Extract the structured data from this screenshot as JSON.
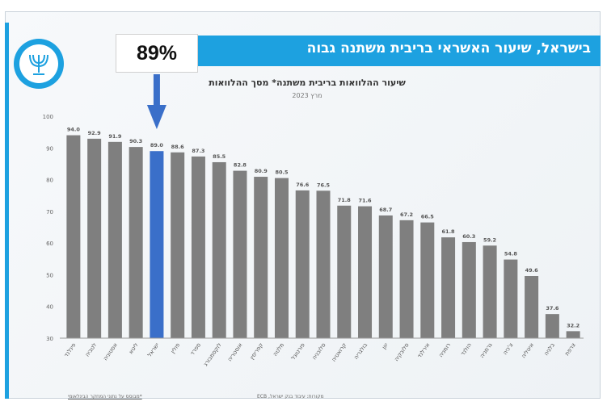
{
  "slide": {
    "title": "בישראל, שיעור האשראי בריבית משתנה גבוה",
    "callout_text": "89%",
    "footer_left": "*מבוסס על נתוני המחקר הבינלאומי",
    "footer_right": "מקורות: עיבוד בנק ישראל, ECB"
  },
  "colors": {
    "accent": "#1da1e0",
    "bar_default": "#7f7f7f",
    "bar_highlight": "#3a6fc9",
    "arrow": "#3a6fc9"
  },
  "chart_data": {
    "type": "bar",
    "title": "שיעור ההלוואות בריבית משתנה* מסך ההלוואות",
    "subtitle": "מרץ 2023",
    "xlabel": "",
    "ylabel": "",
    "ylim": [
      30,
      100
    ],
    "yticks": [
      30,
      40,
      50,
      60,
      70,
      80,
      90,
      100
    ],
    "grid": false,
    "categories": [
      "פינלנד",
      "לטביה",
      "אסטוניה",
      "ליטא",
      "ישראל",
      "פולין",
      "ספרד",
      "לוקסמבורג",
      "אוסטריה",
      "קפריסין",
      "מלטה",
      "פורטוגל",
      "סלובניה",
      "קרואטיה",
      "בולגריה",
      "יוון",
      "סלובקיה",
      "אירלנד",
      "רומניה",
      "הולנד",
      "גרמניה",
      "צ'כיה",
      "איטליה",
      "בלגיה",
      "צרפת"
    ],
    "values": [
      94.0,
      92.9,
      91.9,
      90.3,
      89.0,
      88.6,
      87.3,
      85.5,
      82.8,
      80.9,
      80.5,
      76.6,
      76.5,
      71.8,
      71.6,
      68.7,
      67.2,
      66.5,
      61.8,
      60.3,
      59.2,
      54.8,
      49.6,
      37.6,
      32.2
    ],
    "value_labels": [
      "94.0",
      "92.9",
      "91.9",
      "90.3",
      "89.0",
      "88.6",
      "87.3",
      "85.5",
      "82.8",
      "80.9",
      "80.5",
      "76.6",
      "76.5",
      "71.8",
      "71.6",
      "68.7",
      "67.2",
      "66.5",
      "61.8",
      "60.3",
      "59.2",
      "54.8",
      "49.6",
      "37.6",
      "32.2"
    ],
    "highlight_index": 4
  }
}
